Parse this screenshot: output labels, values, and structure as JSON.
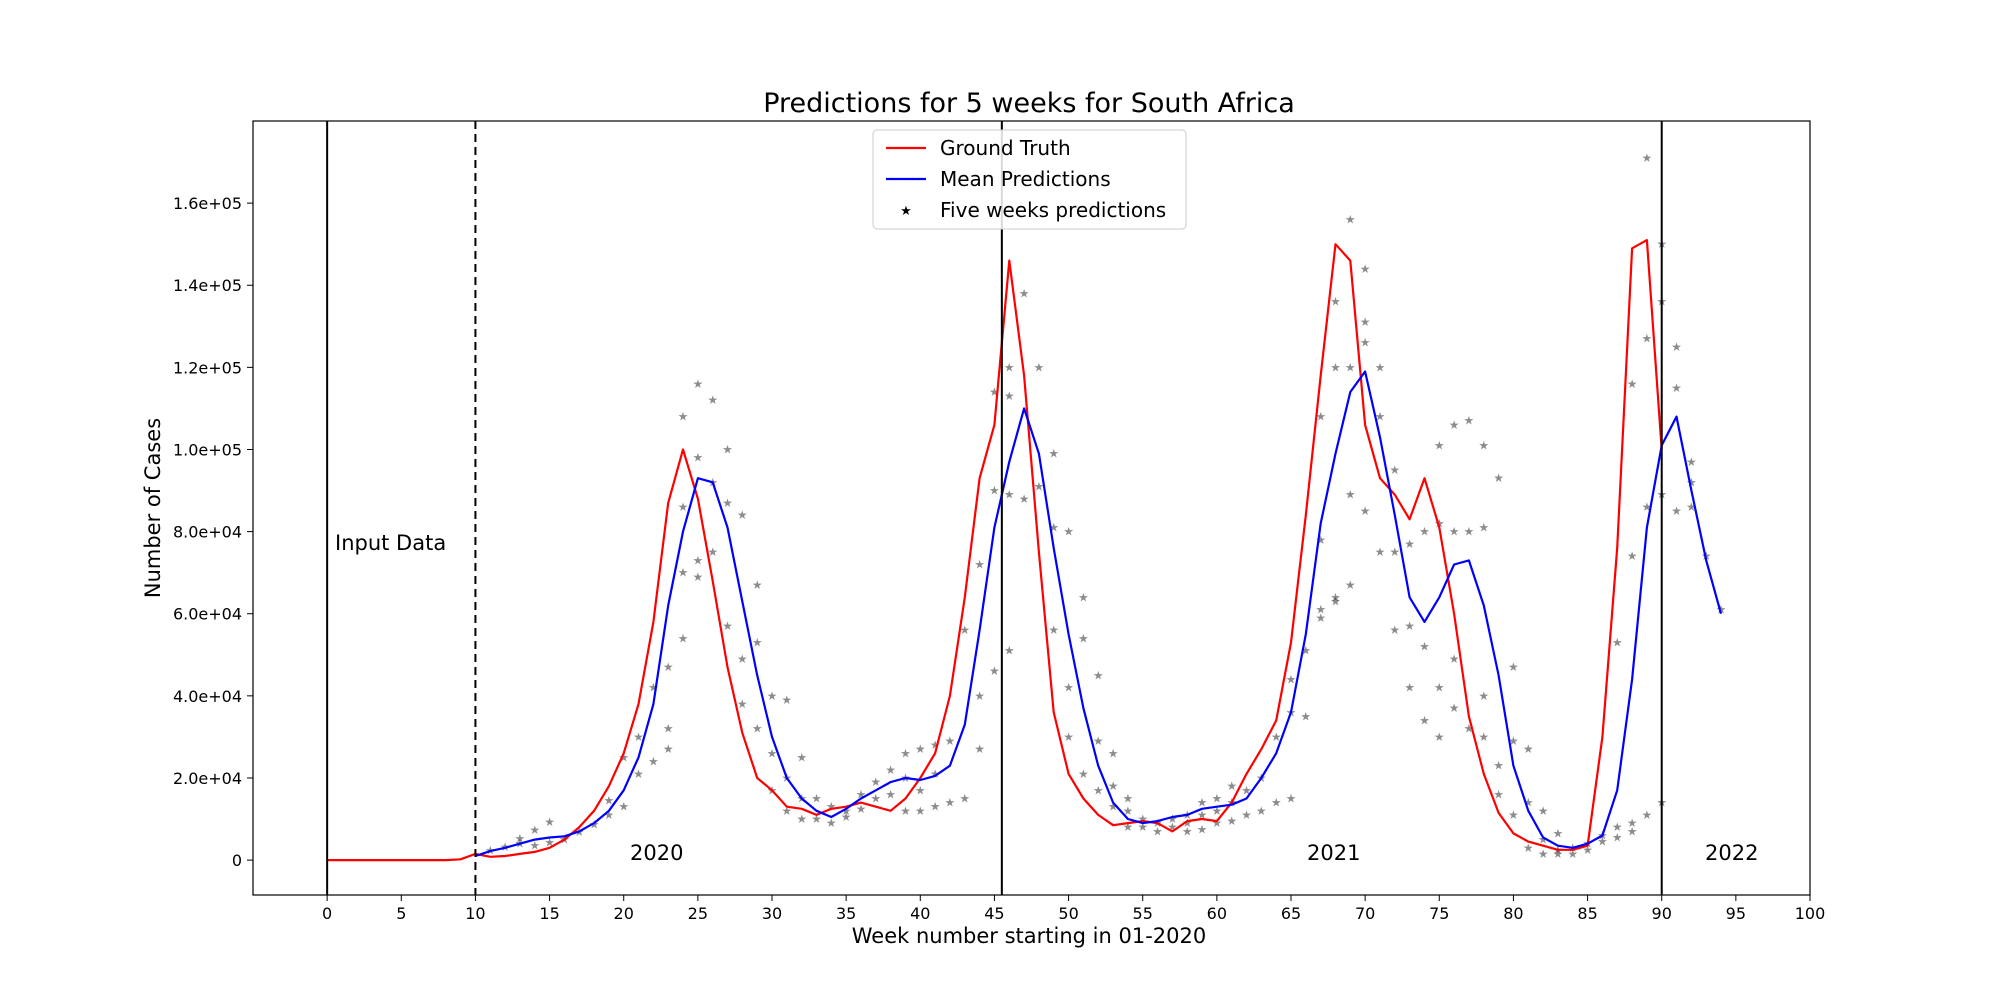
{
  "chart_data": {
    "type": "line",
    "title": "Predictions for 5 weeks for South Africa",
    "xlabel": "Week number starting in 01-2020",
    "ylabel": "Number of Cases",
    "xlim": [
      -5,
      100
    ],
    "ylim": [
      -8500,
      180000
    ],
    "x_ticks": [
      0,
      5,
      10,
      15,
      20,
      25,
      30,
      35,
      40,
      45,
      50,
      55,
      60,
      65,
      70,
      75,
      80,
      85,
      90,
      95,
      100
    ],
    "y_ticks": [
      0,
      20000,
      40000,
      60000,
      80000,
      100000,
      120000,
      140000,
      160000
    ],
    "y_tick_labels": [
      "0",
      "2.0e+04",
      "4.0e+04",
      "6.0e+04",
      "8.0e+04",
      "1.0e+05",
      "1.2e+05",
      "1.4e+05",
      "1.6e+05"
    ],
    "legend": {
      "position": "upper-center",
      "entries": [
        {
          "label": "Ground Truth",
          "color": "#ff0000",
          "kind": "line"
        },
        {
          "label": "Mean Predictions",
          "color": "#0000ff",
          "kind": "line"
        },
        {
          "label": "Five weeks predictions",
          "color": "#87ceeb",
          "kind": "marker"
        }
      ]
    },
    "annotations": [
      {
        "text": "Input Data",
        "x": 1,
        "y": 77000
      },
      {
        "text": "2020",
        "x": 22.5,
        "y": 1000
      },
      {
        "text": "2021",
        "x": 68,
        "y": 1000
      },
      {
        "text": "2022",
        "x": 95,
        "y": 1000
      }
    ],
    "vertical_lines": [
      {
        "x": 0,
        "style": "solid"
      },
      {
        "x": 10,
        "style": "dashed"
      },
      {
        "x": 45.5,
        "style": "solid"
      },
      {
        "x": 90,
        "style": "solid"
      }
    ],
    "series": [
      {
        "name": "Ground Truth",
        "color": "#ff0000",
        "x": [
          0,
          1,
          2,
          3,
          4,
          5,
          6,
          7,
          8,
          9,
          10,
          11,
          12,
          13,
          14,
          15,
          16,
          17,
          18,
          19,
          20,
          21,
          22,
          23,
          24,
          25,
          26,
          27,
          28,
          29,
          30,
          31,
          32,
          33,
          34,
          35,
          36,
          37,
          38,
          39,
          40,
          41,
          42,
          43,
          44,
          45,
          46,
          47,
          48,
          49,
          50,
          51,
          52,
          53,
          54,
          55,
          56,
          57,
          58,
          59,
          60,
          61,
          62,
          63,
          64,
          65,
          66,
          67,
          68,
          69,
          70,
          71,
          72,
          73,
          74,
          75,
          76,
          77,
          78,
          79,
          80,
          81,
          82,
          83,
          84,
          85,
          86,
          87,
          88,
          89,
          90
        ],
        "y": [
          0,
          0,
          0,
          0,
          0,
          0,
          0,
          0,
          0,
          200,
          1500,
          800,
          1000,
          1500,
          2000,
          3000,
          5000,
          8000,
          12000,
          18000,
          26000,
          38000,
          58000,
          87000,
          100000,
          88000,
          68000,
          47000,
          31000,
          20000,
          17000,
          13000,
          12500,
          11000,
          12500,
          13000,
          14000,
          13000,
          12000,
          15000,
          20000,
          26000,
          40000,
          64000,
          93000,
          106000,
          146000,
          118000,
          75000,
          36000,
          21000,
          15000,
          11000,
          8500,
          9000,
          9500,
          9000,
          7000,
          9500,
          10000,
          9500,
          14000,
          21000,
          27000,
          34000,
          53000,
          84000,
          118000,
          150000,
          146000,
          106000,
          93000,
          89000,
          83000,
          93000,
          81000,
          60000,
          35000,
          21000,
          11500,
          6500,
          4500,
          3500,
          2500,
          2500,
          3500,
          30000,
          76000,
          149000,
          151000,
          100000
        ]
      },
      {
        "name": "Mean Predictions",
        "color": "#0000ff",
        "x": [
          10,
          11,
          12,
          13,
          14,
          15,
          16,
          17,
          18,
          19,
          20,
          21,
          22,
          23,
          24,
          25,
          26,
          27,
          28,
          29,
          30,
          31,
          32,
          33,
          34,
          35,
          36,
          37,
          38,
          39,
          40,
          41,
          42,
          43,
          44,
          45,
          46,
          47,
          48,
          49,
          50,
          51,
          52,
          53,
          54,
          55,
          56,
          57,
          58,
          59,
          60,
          61,
          62,
          63,
          64,
          65,
          66,
          67,
          68,
          69,
          70,
          71,
          72,
          73,
          74,
          75,
          76,
          77,
          78,
          79,
          80,
          81,
          82,
          83,
          84,
          85,
          86,
          87,
          88,
          89,
          90,
          91,
          92,
          93,
          94
        ],
        "y": [
          1000,
          2200,
          3000,
          4000,
          5000,
          5500,
          5800,
          7000,
          9000,
          12000,
          17000,
          25000,
          38000,
          62000,
          80000,
          93000,
          92000,
          81000,
          63000,
          45000,
          30000,
          20000,
          15000,
          12000,
          10500,
          12500,
          15000,
          17000,
          19000,
          20000,
          19500,
          20500,
          23000,
          33000,
          56000,
          81000,
          97000,
          110000,
          99000,
          76000,
          55000,
          37000,
          23000,
          14000,
          10000,
          9000,
          9500,
          10500,
          11000,
          12500,
          13000,
          13500,
          15000,
          20000,
          26000,
          36000,
          55000,
          82000,
          99000,
          114000,
          119000,
          103000,
          84000,
          64000,
          58000,
          64000,
          72000,
          73000,
          62000,
          45000,
          23000,
          12000,
          5500,
          3500,
          3000,
          4000,
          6000,
          17000,
          44000,
          81000,
          101000,
          108000,
          90000,
          73000,
          60000
        ]
      }
    ],
    "five_weeks_predictions": {
      "marker": "star",
      "colors": [
        "#1f77b4",
        "#ff7f0e",
        "#2ca02c",
        "#d62728",
        "#9467bd",
        "#8c564b",
        "#e377c2",
        "#7f7f7f",
        "#bcbd22",
        "#17becf"
      ],
      "points": [
        [
          11,
          2300
        ],
        [
          12,
          3200
        ],
        [
          13,
          4000
        ],
        [
          13,
          5300
        ],
        [
          14,
          3500
        ],
        [
          14,
          7300
        ],
        [
          15,
          4300
        ],
        [
          15,
          9300
        ],
        [
          16,
          5000
        ],
        [
          17,
          6800
        ],
        [
          18,
          8700
        ],
        [
          19,
          11000
        ],
        [
          19,
          14500
        ],
        [
          20,
          13000
        ],
        [
          20,
          25000
        ],
        [
          21,
          21000
        ],
        [
          21,
          30000
        ],
        [
          22,
          24000
        ],
        [
          22,
          42000
        ],
        [
          23,
          27000
        ],
        [
          23,
          32000
        ],
        [
          23,
          47000
        ],
        [
          24,
          54000
        ],
        [
          24,
          70000
        ],
        [
          24,
          86000
        ],
        [
          24,
          108000
        ],
        [
          25,
          69000
        ],
        [
          25,
          73000
        ],
        [
          25,
          98000
        ],
        [
          25,
          116000
        ],
        [
          26,
          75000
        ],
        [
          26,
          92000
        ],
        [
          26,
          112000
        ],
        [
          27,
          57000
        ],
        [
          27,
          87000
        ],
        [
          27,
          100000
        ],
        [
          28,
          38000
        ],
        [
          28,
          49000
        ],
        [
          28,
          84000
        ],
        [
          29,
          32000
        ],
        [
          29,
          53000
        ],
        [
          29,
          67000
        ],
        [
          30,
          17000
        ],
        [
          30,
          26000
        ],
        [
          30,
          40000
        ],
        [
          31,
          12000
        ],
        [
          31,
          20000
        ],
        [
          31,
          39000
        ],
        [
          32,
          10000
        ],
        [
          32,
          15000
        ],
        [
          32,
          25000
        ],
        [
          33,
          10000
        ],
        [
          33,
          15000
        ],
        [
          34,
          9000
        ],
        [
          34,
          13000
        ],
        [
          35,
          10500
        ],
        [
          35,
          12000
        ],
        [
          36,
          12500
        ],
        [
          36,
          16000
        ],
        [
          37,
          15000
        ],
        [
          37,
          19000
        ],
        [
          38,
          16000
        ],
        [
          38,
          22000
        ],
        [
          39,
          12000
        ],
        [
          39,
          20000
        ],
        [
          39,
          26000
        ],
        [
          40,
          12000
        ],
        [
          40,
          17000
        ],
        [
          40,
          27000
        ],
        [
          41,
          13000
        ],
        [
          41,
          21000
        ],
        [
          41,
          28000
        ],
        [
          42,
          14000
        ],
        [
          42,
          29000
        ],
        [
          43,
          15000
        ],
        [
          43,
          56000
        ],
        [
          44,
          27000
        ],
        [
          44,
          40000
        ],
        [
          44,
          72000
        ],
        [
          45,
          46000
        ],
        [
          45,
          90000
        ],
        [
          45,
          114000
        ],
        [
          46,
          51000
        ],
        [
          46,
          89000
        ],
        [
          46,
          113000
        ],
        [
          46,
          120000
        ],
        [
          47,
          88000
        ],
        [
          47,
          138000
        ],
        [
          48,
          91000
        ],
        [
          48,
          120000
        ],
        [
          49,
          56000
        ],
        [
          49,
          81000
        ],
        [
          49,
          99000
        ],
        [
          50,
          30000
        ],
        [
          50,
          42000
        ],
        [
          50,
          80000
        ],
        [
          51,
          21000
        ],
        [
          51,
          54000
        ],
        [
          51,
          64000
        ],
        [
          52,
          17000
        ],
        [
          52,
          29000
        ],
        [
          52,
          45000
        ],
        [
          53,
          13000
        ],
        [
          53,
          18000
        ],
        [
          53,
          26000
        ],
        [
          54,
          8000
        ],
        [
          54,
          12000
        ],
        [
          54,
          15000
        ],
        [
          55,
          8000
        ],
        [
          55,
          10000
        ],
        [
          56,
          7000
        ],
        [
          56,
          9000
        ],
        [
          57,
          8000
        ],
        [
          57,
          10000
        ],
        [
          58,
          7000
        ],
        [
          58,
          9000
        ],
        [
          58,
          11000
        ],
        [
          59,
          7500
        ],
        [
          59,
          11000
        ],
        [
          59,
          14000
        ],
        [
          60,
          9000
        ],
        [
          60,
          12000
        ],
        [
          60,
          15000
        ],
        [
          61,
          9500
        ],
        [
          61,
          14000
        ],
        [
          61,
          18000
        ],
        [
          62,
          11000
        ],
        [
          62,
          17000
        ],
        [
          63,
          12000
        ],
        [
          63,
          20000
        ],
        [
          64,
          14000
        ],
        [
          64,
          30000
        ],
        [
          65,
          15000
        ],
        [
          65,
          36000
        ],
        [
          65,
          44000
        ],
        [
          66,
          35000
        ],
        [
          66,
          51000
        ],
        [
          67,
          59000
        ],
        [
          67,
          61000
        ],
        [
          67,
          78000
        ],
        [
          67,
          108000
        ],
        [
          68,
          63000
        ],
        [
          68,
          64000
        ],
        [
          68,
          120000
        ],
        [
          68,
          136000
        ],
        [
          69,
          67000
        ],
        [
          69,
          89000
        ],
        [
          69,
          120000
        ],
        [
          69,
          156000
        ],
        [
          70,
          85000
        ],
        [
          70,
          126000
        ],
        [
          70,
          131000
        ],
        [
          70,
          144000
        ],
        [
          71,
          75000
        ],
        [
          71,
          108000
        ],
        [
          71,
          120000
        ],
        [
          72,
          56000
        ],
        [
          72,
          75000
        ],
        [
          72,
          95000
        ],
        [
          73,
          42000
        ],
        [
          73,
          57000
        ],
        [
          73,
          77000
        ],
        [
          74,
          34000
        ],
        [
          74,
          52000
        ],
        [
          74,
          80000
        ],
        [
          75,
          30000
        ],
        [
          75,
          42000
        ],
        [
          75,
          82000
        ],
        [
          75,
          101000
        ],
        [
          76,
          37000
        ],
        [
          76,
          49000
        ],
        [
          76,
          80000
        ],
        [
          76,
          106000
        ],
        [
          77,
          32000
        ],
        [
          77,
          80000
        ],
        [
          77,
          107000
        ],
        [
          78,
          30000
        ],
        [
          78,
          40000
        ],
        [
          78,
          81000
        ],
        [
          78,
          101000
        ],
        [
          79,
          16000
        ],
        [
          79,
          23000
        ],
        [
          79,
          93000
        ],
        [
          80,
          11000
        ],
        [
          80,
          29000
        ],
        [
          80,
          47000
        ],
        [
          81,
          3000
        ],
        [
          81,
          14000
        ],
        [
          81,
          27000
        ],
        [
          82,
          1500
        ],
        [
          82,
          5000
        ],
        [
          82,
          12000
        ],
        [
          83,
          1500
        ],
        [
          83,
          2500
        ],
        [
          83,
          6500
        ],
        [
          84,
          1500
        ],
        [
          84,
          3000
        ],
        [
          85,
          2500
        ],
        [
          85,
          4000
        ],
        [
          86,
          4500
        ],
        [
          86,
          6000
        ],
        [
          87,
          5500
        ],
        [
          87,
          8000
        ],
        [
          87,
          53000
        ],
        [
          88,
          7000
        ],
        [
          88,
          9000
        ],
        [
          88,
          74000
        ],
        [
          88,
          116000
        ],
        [
          89,
          11000
        ],
        [
          89,
          86000
        ],
        [
          89,
          127000
        ],
        [
          89,
          171000
        ],
        [
          90,
          14000
        ],
        [
          90,
          89000
        ],
        [
          90,
          136000
        ],
        [
          90,
          150000
        ],
        [
          91,
          85000
        ],
        [
          91,
          115000
        ],
        [
          91,
          125000
        ],
        [
          92,
          86000
        ],
        [
          92,
          92000
        ],
        [
          92,
          97000
        ],
        [
          93,
          74000
        ],
        [
          94,
          61000
        ]
      ]
    }
  }
}
